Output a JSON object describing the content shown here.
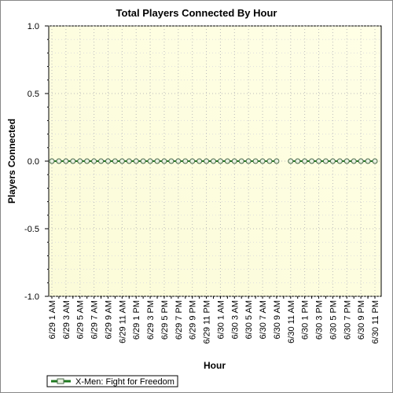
{
  "chart_data": {
    "type": "line",
    "title": "Total Players Connected By Hour",
    "x_label": "Hour",
    "y_label": "Players Connected",
    "categories": [
      "6/29 1 AM",
      null,
      "6/29 3 AM",
      null,
      "6/29 5 AM",
      null,
      "6/29 7 AM",
      null,
      "6/29 9 AM",
      null,
      "6/29 11 AM",
      null,
      "6/29 1 PM",
      null,
      "6/29 3 PM",
      null,
      "6/29 5 PM",
      null,
      "6/29 7 PM",
      null,
      "6/29 9 PM",
      null,
      "6/29 11 PM",
      null,
      "6/30 1 AM",
      null,
      "6/30 3 AM",
      null,
      "6/30 5 AM",
      null,
      "6/30 7 AM",
      null,
      "6/30 9 AM",
      null,
      "6/30 11 AM",
      null,
      "6/30 1 PM",
      null,
      "6/30 3 PM",
      null,
      "6/30 5 PM",
      null,
      "6/30 7 PM",
      null,
      "6/30 9 PM",
      null,
      "6/30 11 PM"
    ],
    "series": [
      {
        "name": "X-Men: Fight for Freedom",
        "color": "#1f7a1f",
        "values": [
          0,
          0,
          0,
          0,
          0,
          0,
          0,
          0,
          0,
          0,
          0,
          0,
          0,
          0,
          0,
          0,
          0,
          0,
          0,
          0,
          0,
          0,
          0,
          0,
          0,
          0,
          0,
          0,
          0,
          0,
          0,
          0,
          0,
          null,
          0,
          0,
          0,
          0,
          0,
          0,
          0,
          0,
          0,
          0,
          0,
          0,
          0
        ]
      }
    ],
    "ylim": [
      -1,
      1
    ],
    "yticks": [
      {
        "value": -1,
        "label": "-1.0"
      },
      -0.5,
      {
        "value": 0,
        "label": "0.0"
      },
      0.5,
      {
        "value": 1,
        "label": "1.0"
      }
    ],
    "grid": true,
    "legend": "bottom-left"
  }
}
